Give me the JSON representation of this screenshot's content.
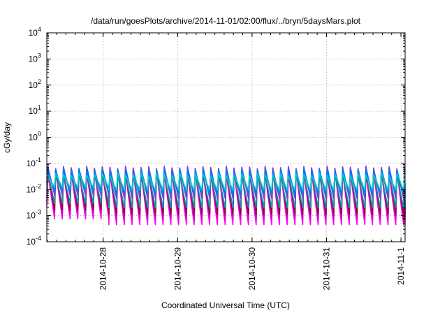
{
  "chart_data": {
    "type": "line",
    "title": "/data/run/goesPlots/archive/2014-11-01/02:00/flux/../bryn/5daysMars.plot",
    "xlabel": "Coordinated Universal Time (UTC)",
    "ylabel": "cGy/day",
    "yscale": "log",
    "ylim": [
      0.0001,
      10000
    ],
    "xlim": [
      "2014-10-27T05:50",
      "2014-11-01T01:20"
    ],
    "grid": true,
    "y_ticks": [
      {
        "base": "10",
        "exp": "-4"
      },
      {
        "base": "10",
        "exp": "-3"
      },
      {
        "base": "10",
        "exp": "-2"
      },
      {
        "base": "10",
        "exp": "-1"
      },
      {
        "base": "10",
        "exp": "0"
      },
      {
        "base": "10",
        "exp": "1"
      },
      {
        "base": "10",
        "exp": "2"
      },
      {
        "base": "10",
        "exp": "3"
      },
      {
        "base": "10",
        "exp": "4"
      }
    ],
    "x_ticks": [
      {
        "label": "2014-10-28",
        "time": "2014-10-28T00:00"
      },
      {
        "label": "2014-10-29",
        "time": "2014-10-29T00:00"
      },
      {
        "label": "2014-10-30",
        "time": "2014-10-30T00:00"
      },
      {
        "label": "2014-10-31",
        "time": "2014-10-31T00:00"
      },
      {
        "label": "2014-11-1",
        "time": "2014-11-01T00:00"
      }
    ],
    "pattern": {
      "description_free": true,
      "start": "2014-10-27T05:50",
      "end": "2014-11-01T01:20",
      "period_hours": 2.5,
      "rise_hours": 0.35
    },
    "series": [
      {
        "color": "#ff00ff",
        "peak": 0.05,
        "trough": 0.00045,
        "trough_early": 0.00075
      },
      {
        "color": "#dd00cc",
        "peak": 0.045,
        "trough": 0.0007,
        "trough_early": 0.0011
      },
      {
        "color": "#8b0a3c",
        "peak": 0.06,
        "trough": 0.0011,
        "trough_early": 0.0016
      },
      {
        "color": "#00a0a0",
        "peak": 0.042,
        "trough": 0.002,
        "trough_early": 0.003
      },
      {
        "color": "#7744cc",
        "peak": 0.07,
        "trough": 0.0045,
        "trough_early": 0.006
      },
      {
        "color": "#0077ff",
        "peak": 0.055,
        "trough": 0.007,
        "trough_early": 0.009
      },
      {
        "color": "#00cccc",
        "peak": 0.038,
        "trough": 0.0095,
        "trough_early": 0.012
      }
    ]
  }
}
